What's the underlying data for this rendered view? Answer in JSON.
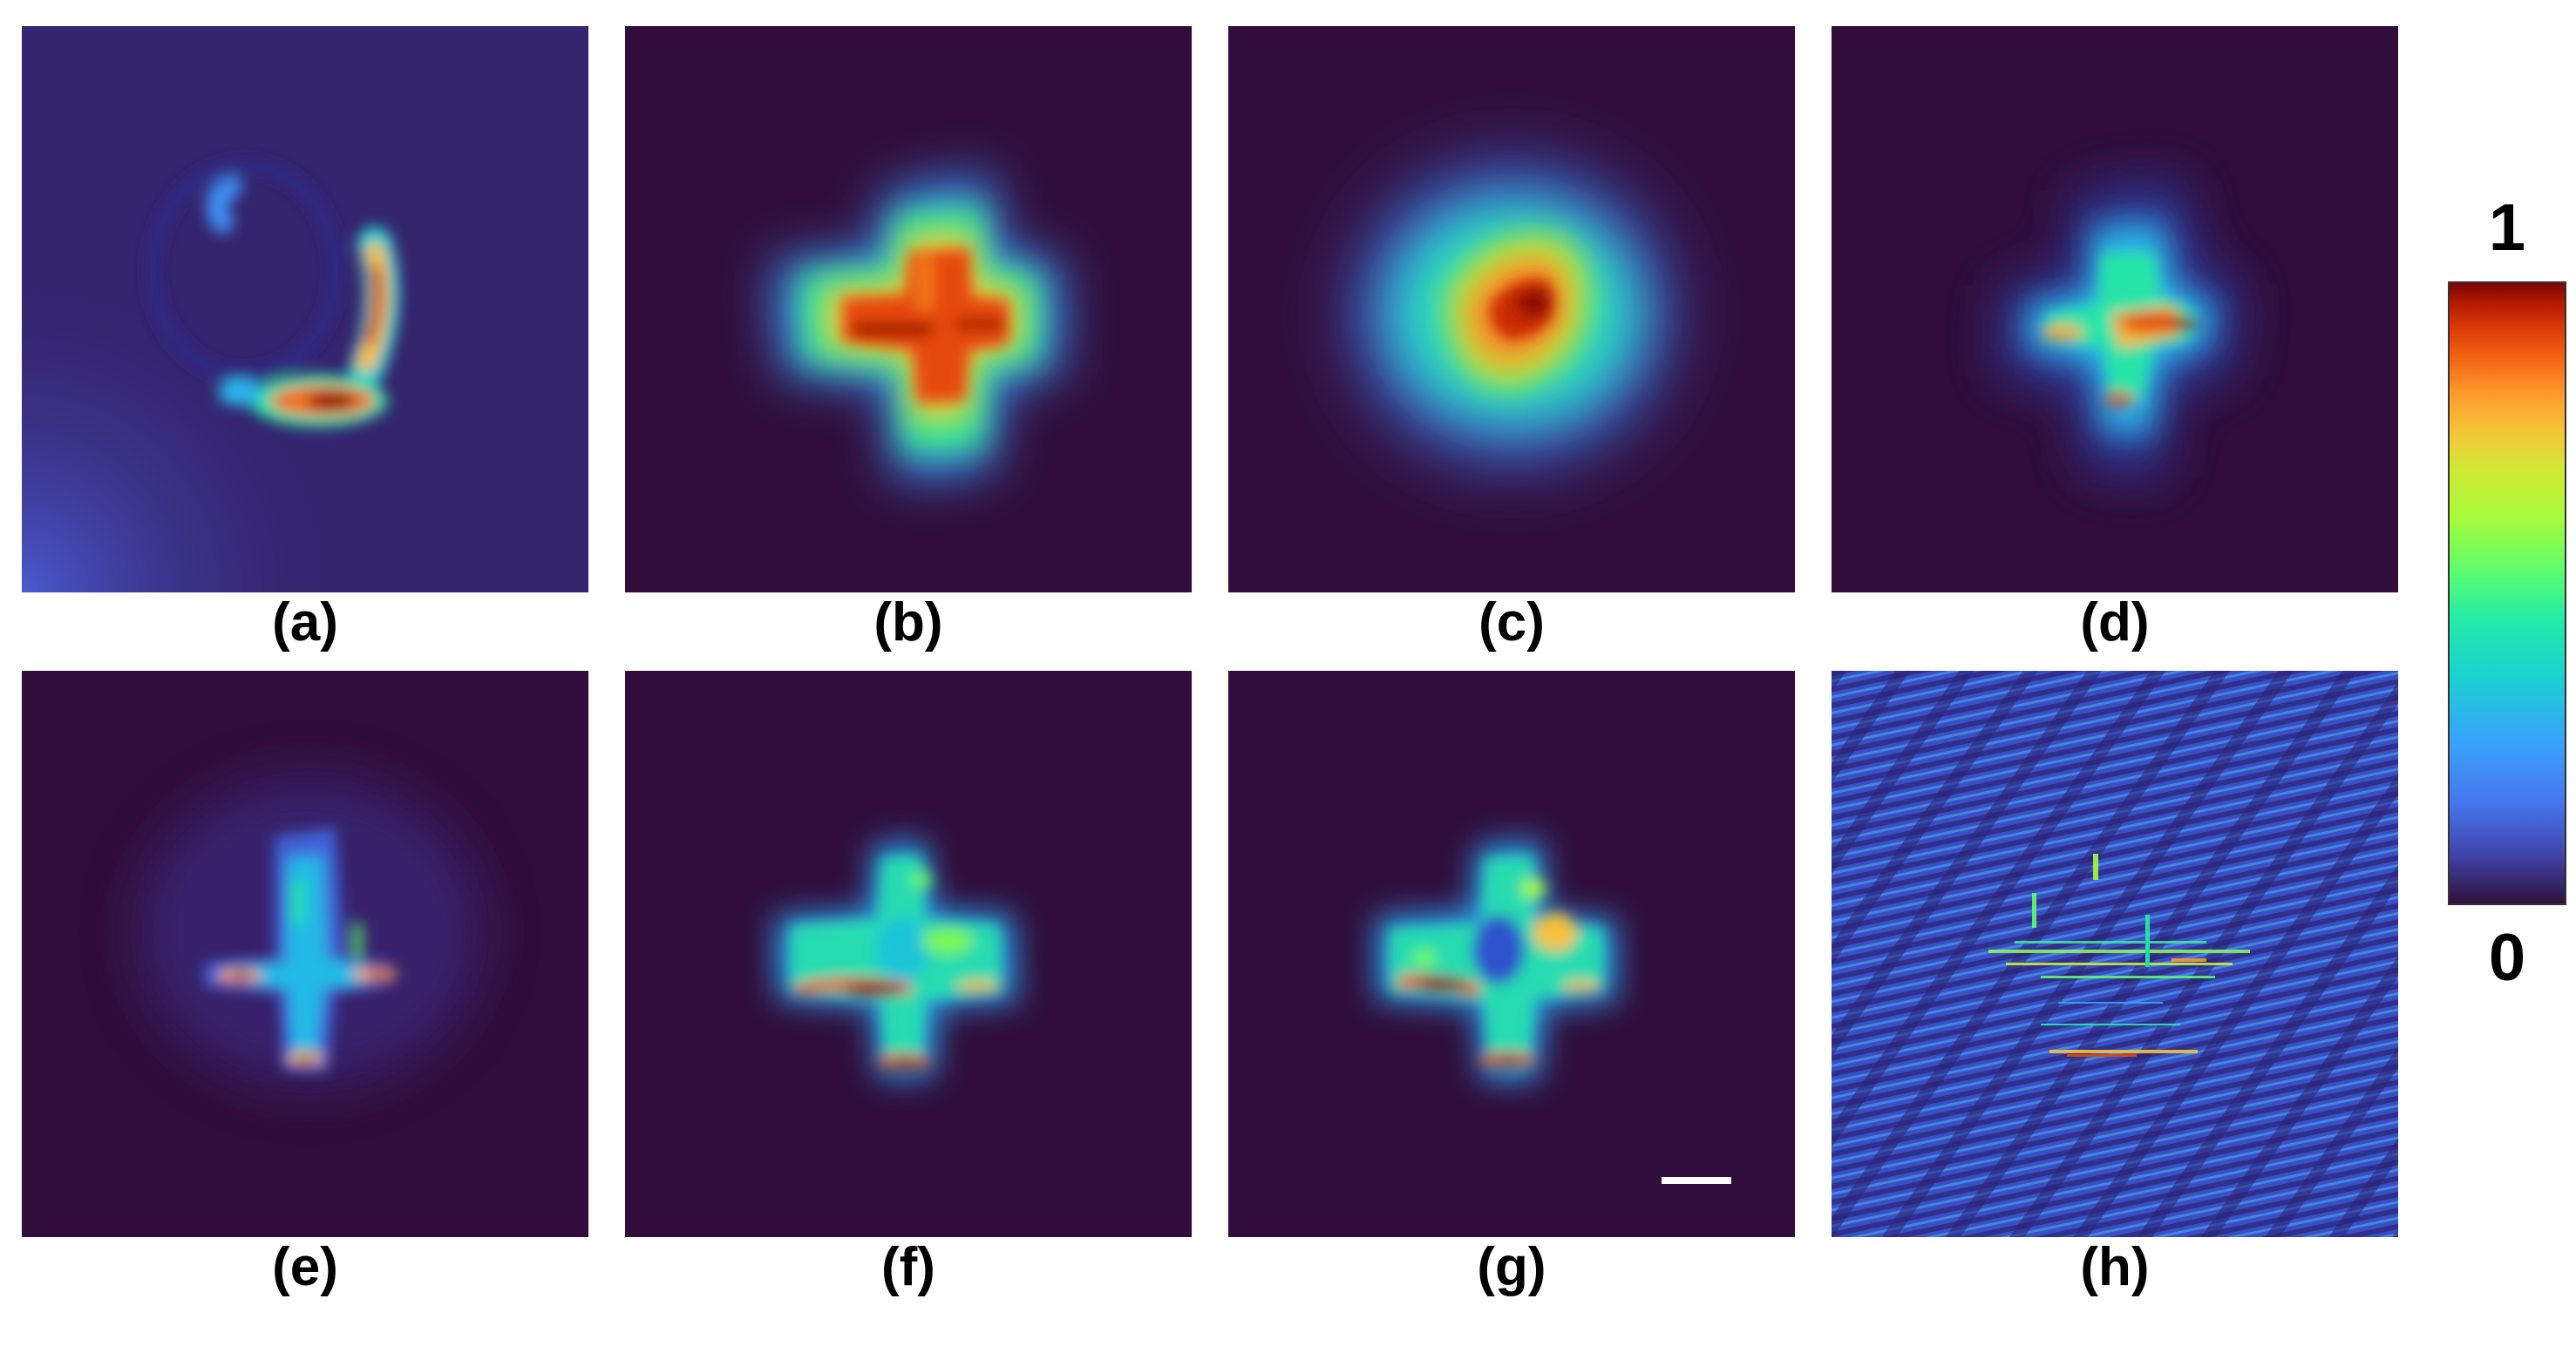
{
  "panels": [
    {
      "id": "a",
      "caption": "(a)"
    },
    {
      "id": "b",
      "caption": "(b)"
    },
    {
      "id": "c",
      "caption": "(c)"
    },
    {
      "id": "d",
      "caption": "(d)"
    },
    {
      "id": "e",
      "caption": "(e)"
    },
    {
      "id": "f",
      "caption": "(f)"
    },
    {
      "id": "g",
      "caption": "(g)"
    },
    {
      "id": "h",
      "caption": "(h)"
    }
  ],
  "colorbar": {
    "max_label": "1",
    "min_label": "0",
    "colormap": "turbo",
    "colors": [
      "#30123b",
      "#4145ab",
      "#4675ed",
      "#39a2fc",
      "#1bcfd4",
      "#24eca6",
      "#61fc6c",
      "#a4fc3b",
      "#d1e834",
      "#f3c63a",
      "#fe9b2d",
      "#f36315",
      "#d93806",
      "#b11901",
      "#7a0403"
    ]
  },
  "scale_bar": {
    "visible": true
  }
}
